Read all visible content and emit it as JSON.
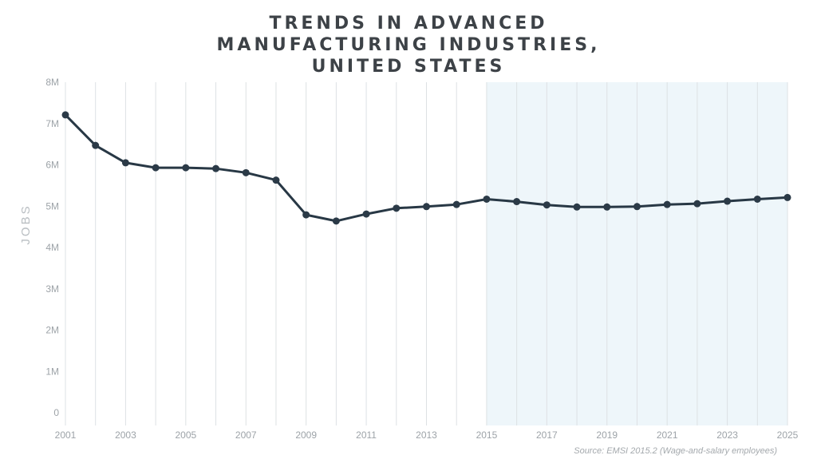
{
  "chart_data": {
    "type": "line",
    "title_lines": [
      "TRENDS IN ADVANCED",
      "MANUFACTURING INDUSTRIES,",
      "UNITED STATES"
    ],
    "ylabel": "JOBS",
    "xlabel": "",
    "ylim": [
      0,
      8000000
    ],
    "xlim": [
      2001,
      2025
    ],
    "y_ticks": [
      {
        "value": 0,
        "label": "0"
      },
      {
        "value": 1000000,
        "label": "1M"
      },
      {
        "value": 2000000,
        "label": "2M"
      },
      {
        "value": 3000000,
        "label": "3M"
      },
      {
        "value": 4000000,
        "label": "4M"
      },
      {
        "value": 5000000,
        "label": "5M"
      },
      {
        "value": 6000000,
        "label": "6M"
      },
      {
        "value": 7000000,
        "label": "7M"
      },
      {
        "value": 8000000,
        "label": "8M"
      }
    ],
    "x_tick_labels": [
      "2001",
      "2003",
      "2005",
      "2007",
      "2009",
      "2011",
      "2013",
      "2015",
      "2017",
      "2019",
      "2021",
      "2023",
      "2025"
    ],
    "projection_range": [
      2015,
      2025
    ],
    "grid": "vertical",
    "series": [
      {
        "x": [
          2001,
          2002,
          2003,
          2004,
          2005,
          2006,
          2007,
          2008,
          2009,
          2010,
          2011,
          2012,
          2013,
          2014,
          2015,
          2016,
          2017,
          2018,
          2019,
          2020,
          2021,
          2022,
          2023,
          2024,
          2025
        ],
        "values": [
          7210000,
          6470000,
          6050000,
          5930000,
          5930000,
          5910000,
          5810000,
          5630000,
          4790000,
          4640000,
          4810000,
          4950000,
          4990000,
          5040000,
          5170000,
          5110000,
          5030000,
          4980000,
          4980000,
          4990000,
          5040000,
          5060000,
          5120000,
          5170000,
          5210000
        ]
      }
    ],
    "colors": {
      "line": "#283845",
      "marker": "#2b3a47",
      "projection_fill": "#eef6fa",
      "grid": "#dde1e4",
      "title": "#3d4247",
      "tick": "#9da3a8"
    }
  },
  "source_note": "Source: EMSI 2015.2 (Wage-and-salary employees)"
}
